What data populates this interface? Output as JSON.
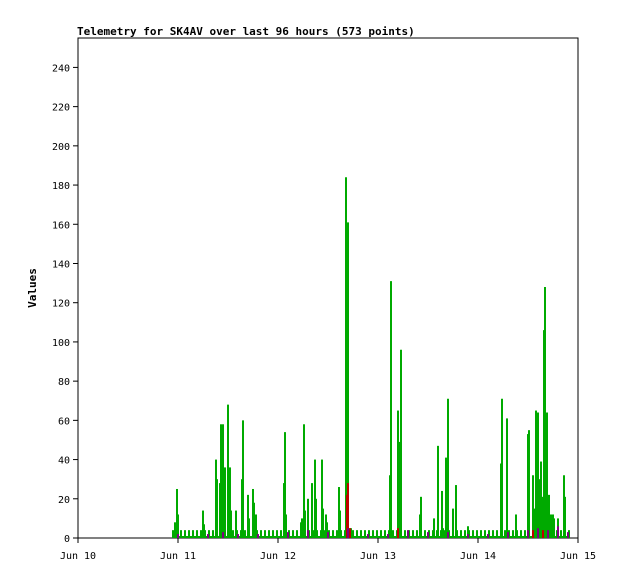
{
  "chart_data": {
    "type": "bar",
    "title": "Telemetry for SK4AV over last 96 hours (573 points)",
    "ylabel": "Values",
    "xlabel": "",
    "ylim": [
      0,
      255
    ],
    "xlim": [
      10.0,
      15.0
    ],
    "yticks": [
      0,
      20,
      40,
      60,
      80,
      100,
      120,
      140,
      160,
      180,
      200,
      220,
      240
    ],
    "xticks": [
      {
        "value": 10,
        "label": "Jun 10"
      },
      {
        "value": 11,
        "label": "Jun 11"
      },
      {
        "value": 12,
        "label": "Jun 12"
      },
      {
        "value": 13,
        "label": "Jun 13"
      },
      {
        "value": 14,
        "label": "Jun 14"
      },
      {
        "value": 15,
        "label": "Jun 15"
      }
    ],
    "grid": false,
    "colors": {
      "series1": "#00aa00",
      "series2": "#c00000",
      "series3": "#800080",
      "frame": "#000000"
    },
    "series": [
      {
        "color": "#00aa00",
        "x": [
          10.97,
          10.99,
          11.0,
          11.25,
          11.26,
          11.38,
          11.39,
          11.42,
          11.43,
          11.44,
          11.45,
          11.47,
          11.5,
          11.52,
          11.53,
          11.58,
          11.64,
          11.65,
          11.7,
          11.71,
          11.75,
          11.76,
          11.78,
          12.06,
          12.07,
          12.08,
          12.23,
          12.24,
          12.26,
          12.27,
          12.3,
          12.34,
          12.37,
          12.38,
          12.44,
          12.45,
          12.48,
          12.49,
          12.61,
          12.62,
          12.68,
          12.7,
          12.7,
          12.72,
          12.73,
          13.12,
          13.13,
          13.2,
          13.21,
          13.22,
          13.23,
          13.42,
          13.43,
          13.56,
          13.6,
          13.64,
          13.65,
          13.68,
          13.7,
          13.75,
          13.78,
          13.9,
          14.23,
          14.24,
          14.29,
          14.38,
          14.5,
          14.51,
          14.55,
          14.57,
          14.58,
          14.6,
          14.61,
          14.62,
          14.63,
          14.64,
          14.66,
          14.67,
          14.69,
          14.71,
          14.73,
          14.75,
          14.76,
          14.8,
          14.86,
          14.87
        ],
        "values": [
          8,
          25,
          12,
          14,
          7,
          40,
          30,
          28,
          58,
          30,
          58,
          36,
          68,
          36,
          14,
          14,
          30,
          60,
          22,
          10,
          25,
          18,
          12,
          28,
          54,
          12,
          8,
          10,
          58,
          14,
          20,
          28,
          40,
          20,
          40,
          15,
          12,
          8,
          26,
          14,
          184,
          161,
          69,
          5,
          5,
          32,
          131,
          65,
          10,
          49,
          96,
          12,
          21,
          10,
          47,
          24,
          5,
          41,
          71,
          15,
          27,
          6,
          38,
          71,
          61,
          12,
          53,
          55,
          32,
          15,
          65,
          64,
          30,
          21,
          39,
          21,
          106,
          128,
          64,
          22,
          12,
          12,
          10,
          10,
          32,
          21
        ]
      },
      {
        "color": "#c00000",
        "x": [
          12.69,
          12.7,
          12.72,
          13.2,
          14.55,
          14.65
        ],
        "values": [
          22,
          28,
          5,
          5,
          4,
          4
        ]
      },
      {
        "color": "#800080",
        "x": [
          11.0,
          11.3,
          11.45,
          11.6,
          11.8,
          12.1,
          12.3,
          12.5,
          12.7,
          12.9,
          13.1,
          13.3,
          13.5,
          13.7,
          13.9,
          14.1,
          14.3,
          14.5,
          14.6,
          14.7,
          14.8,
          14.9
        ],
        "values": [
          2,
          2,
          3,
          2,
          2,
          3,
          4,
          3,
          5,
          2,
          2,
          4,
          3,
          3,
          2,
          2,
          3,
          4,
          5,
          4,
          6,
          3
        ]
      }
    ],
    "baseline": {
      "color": "#00aa00",
      "x_start": 10.95,
      "x_end": 14.92,
      "value": 4
    }
  }
}
